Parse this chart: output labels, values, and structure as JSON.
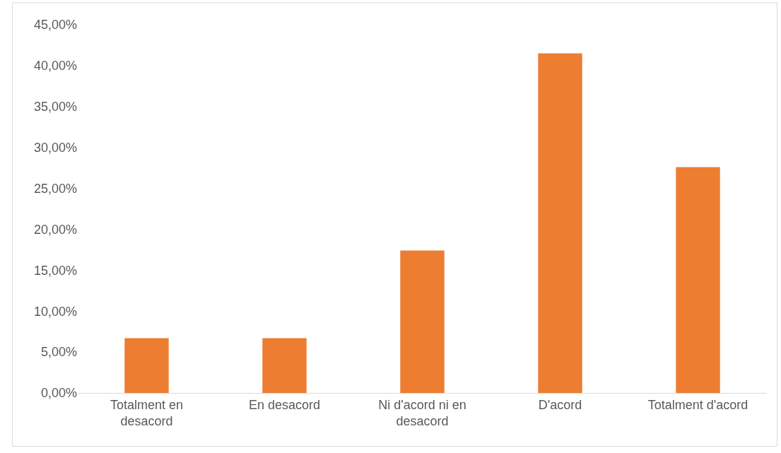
{
  "chart_data": {
    "type": "bar",
    "categories": [
      "Totalment en desacord",
      "En desacord",
      "Ni d'acord ni en desacord",
      "D'acord",
      "Totalment d'acord"
    ],
    "values": [
      6.7,
      6.7,
      17.4,
      41.5,
      27.6
    ],
    "color": "#ed7d31",
    "ylim": [
      0,
      45
    ],
    "yticks": [
      {
        "value": 0,
        "label": "0,00%"
      },
      {
        "value": 5,
        "label": "5,00%"
      },
      {
        "value": 10,
        "label": "10,00%"
      },
      {
        "value": 15,
        "label": "15,00%"
      },
      {
        "value": 20,
        "label": "20,00%"
      },
      {
        "value": 25,
        "label": "25,00%"
      },
      {
        "value": 30,
        "label": "30,00%"
      },
      {
        "value": 35,
        "label": "35,00%"
      },
      {
        "value": 40,
        "label": "40,00%"
      },
      {
        "value": 45,
        "label": "45,00%"
      }
    ],
    "grid": false,
    "legend": false
  }
}
